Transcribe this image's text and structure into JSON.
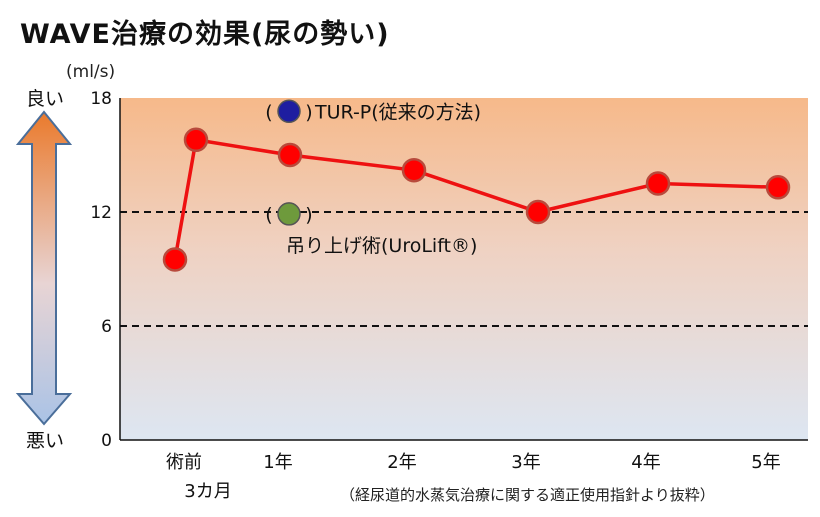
{
  "title": "WAVE治療の効果(尿の勢い)",
  "unit_label": "(ml/s)",
  "axis_good_label": "良い",
  "axis_bad_label": "悪い",
  "source_note": "（経尿道的水蒸気治療に関する適正使用指針より抜粋）",
  "colors": {
    "line": "#ee1111",
    "marker_fill": "#ff0000",
    "marker_stroke": "#b84a3c",
    "reference_tur": "#1e1ea0",
    "reference_urolift": "#6e9a3c",
    "bg_top": "#f6b98a",
    "bg_bottom": "#dde6f2"
  },
  "chart_data": {
    "type": "line",
    "categories": [
      "術前\n3カ月",
      "1年",
      "2年",
      "3年",
      "4年",
      "5年"
    ],
    "series": [
      {
        "points": [
          {
            "x": "術前",
            "y": 9.5
          },
          {
            "x": "術前",
            "y": 15.8
          },
          {
            "x": "1年",
            "y": 15.0
          },
          {
            "x": "2年",
            "y": 14.2
          },
          {
            "x": "3年",
            "y": 12.0
          },
          {
            "x": "4年",
            "y": 13.5
          },
          {
            "x": "5年",
            "y": 13.3
          }
        ]
      }
    ],
    "reference_markers": [
      {
        "label": "TUR-P(従来の方法)",
        "y": 17.3,
        "color": "#1e1ea0"
      },
      {
        "label": "吊り上げ術(UroLift®)",
        "y": 11.9,
        "color": "#6e9a3c"
      }
    ],
    "ylim": [
      0,
      18
    ],
    "yticks": [
      0,
      6,
      12,
      18
    ],
    "dashed_gridlines": [
      6,
      12
    ],
    "xlabel": "",
    "ylabel": "(ml/s)"
  }
}
